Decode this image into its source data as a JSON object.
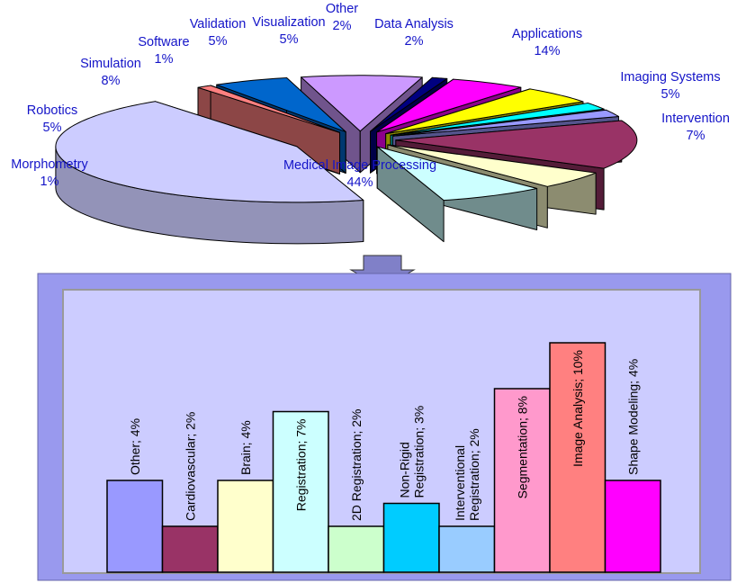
{
  "chart_data": [
    {
      "type": "pie",
      "slices": [
        {
          "label": "Medical Image Processing",
          "value": 44,
          "value_label": "44%",
          "color": "#ccccff"
        },
        {
          "label": "Morphometry",
          "value": 1,
          "value_label": "1%",
          "color": "#ff8080"
        },
        {
          "label": "Robotics",
          "value": 5,
          "value_label": "5%",
          "color": "#0066cc"
        },
        {
          "label": "Simulation",
          "value": 8,
          "value_label": "8%",
          "color": "#cc99ff"
        },
        {
          "label": "Software",
          "value": 1,
          "value_label": "1%",
          "color": "#000080"
        },
        {
          "label": "Validation",
          "value": 5,
          "value_label": "5%",
          "color": "#ff00ff"
        },
        {
          "label": "Visualization",
          "value": 5,
          "value_label": "5%",
          "color": "#ffff00"
        },
        {
          "label": "Other",
          "value": 2,
          "value_label": "2%",
          "color": "#00ffff"
        },
        {
          "label": "Data Analysis",
          "value": 2,
          "value_label": "2%",
          "color": "#9999ff"
        },
        {
          "label": "Applications",
          "value": 14,
          "value_label": "14%",
          "color": "#993366"
        },
        {
          "label": "Imaging Systems",
          "value": 5,
          "value_label": "5%",
          "color": "#ffffcc"
        },
        {
          "label": "Intervention",
          "value": 7,
          "value_label": "7%",
          "color": "#ccffff"
        }
      ]
    },
    {
      "type": "bar",
      "bars": [
        {
          "label": "Other; 4%",
          "value": 4,
          "color": "#9999ff"
        },
        {
          "label": "Cardiovascular; 2%",
          "value": 2,
          "color": "#993366"
        },
        {
          "label": "Brain; 4%",
          "value": 4,
          "color": "#ffffcc"
        },
        {
          "label": "Registration; 7%",
          "value": 7,
          "color": "#ccffff"
        },
        {
          "label": "2D Registration; 2%",
          "value": 2,
          "color": "#ccffcc"
        },
        {
          "label": [
            "Non-Rigid",
            "Registration; 3%"
          ],
          "value": 3,
          "color": "#00ccff"
        },
        {
          "label": [
            "Interventional",
            "Registration; 2%"
          ],
          "value": 2,
          "color": "#99ccff"
        },
        {
          "label": "Segmentation; 8%",
          "value": 8,
          "color": "#ff99cc"
        },
        {
          "label": "Image Analysis; 10%",
          "value": 10,
          "color": "#ff8080"
        },
        {
          "label": "Shape Modeling; 4%",
          "value": 4,
          "color": "#ff00ff"
        }
      ]
    }
  ]
}
